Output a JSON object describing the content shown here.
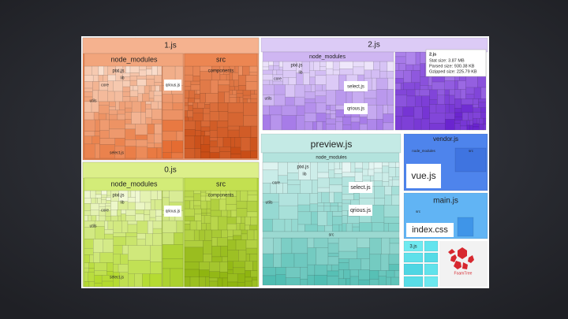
{
  "groups": [
    {
      "title": "1.js",
      "sections": [
        {
          "label": "node_modules",
          "items": [
            "pixi.js",
            "lib",
            "core",
            "utils",
            "select.js",
            "qrious.js"
          ]
        },
        {
          "label": "src",
          "items": [
            "components"
          ]
        }
      ]
    },
    {
      "title": "0.js",
      "sections": [
        {
          "label": "node_modules",
          "items": [
            "pixi.js",
            "lib",
            "core",
            "utils",
            "select.js",
            "qrious.js"
          ]
        },
        {
          "label": "src",
          "items": [
            "components"
          ]
        }
      ]
    },
    {
      "title": "2.js",
      "sections": [
        {
          "label": "node_modules",
          "items": [
            "pixi.js",
            "lib",
            "core",
            "utils",
            "select.js",
            "qrious.js"
          ]
        }
      ]
    },
    {
      "title": "preview.js",
      "sections": [
        {
          "label": "node_modules",
          "items": [
            "pixi.js",
            "lib",
            "core",
            "utils",
            "select.js",
            "qrious.js"
          ]
        },
        {
          "label": "src",
          "items": []
        }
      ]
    },
    {
      "title": "vendor.js",
      "sections": [
        {
          "label": "node_modules",
          "items": [
            "vue.js"
          ]
        },
        {
          "label": "src",
          "items": []
        }
      ]
    },
    {
      "title": "main.js",
      "sections": [
        {
          "label": "src",
          "items": [
            "index.css"
          ]
        }
      ]
    },
    {
      "title": "3.js",
      "sections": []
    }
  ],
  "tooltip": {
    "title": "2.js",
    "lines": [
      "Stat size: 3.87 MB",
      "Parsed size: 930.38 KB",
      "Gzipped size: 225.79 KB"
    ]
  },
  "logo": "FoamTree"
}
